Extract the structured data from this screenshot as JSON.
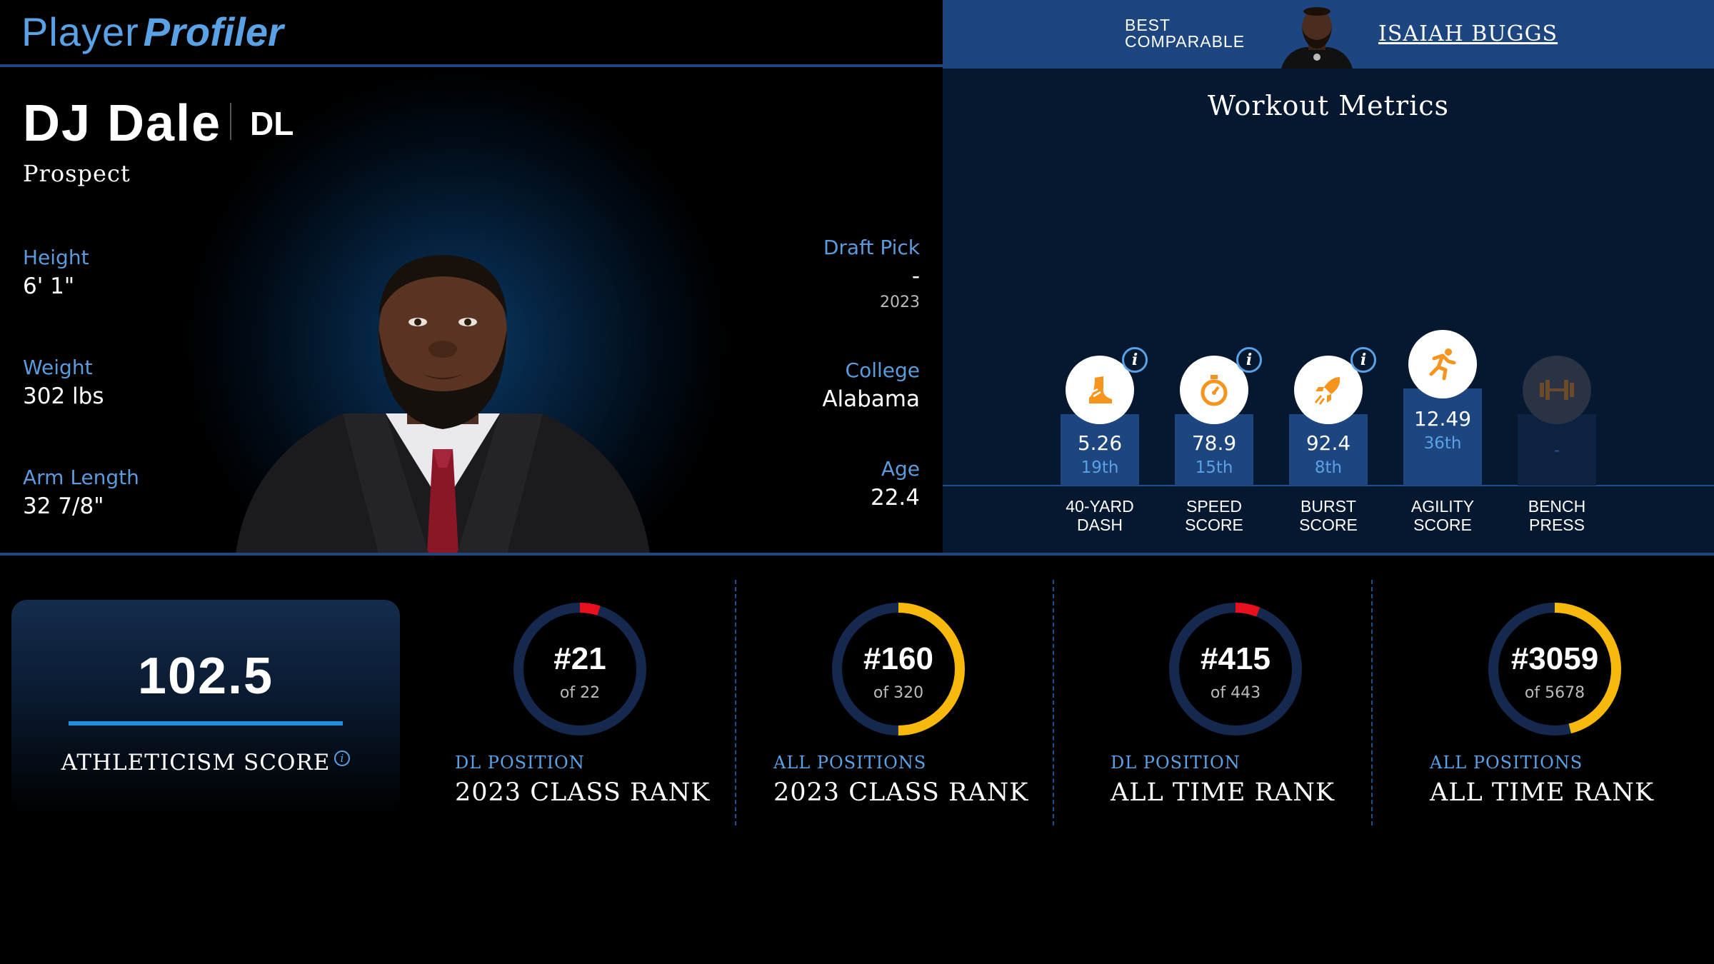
{
  "brand": {
    "part1": "Player",
    "part2": "Profiler"
  },
  "comparable": {
    "label_line1": "BEST",
    "label_line2": "COMPARABLE",
    "name": "ISAIAH BUGGS"
  },
  "player": {
    "name": "DJ Dale",
    "position": "DL",
    "status": "Prospect",
    "height_label": "Height",
    "height": "6' 1\"",
    "weight_label": "Weight",
    "weight": "302 lbs",
    "arm_label": "Arm Length",
    "arm": "32 7/8\"",
    "draft_label": "Draft Pick",
    "draft": "-",
    "draft_year": "2023",
    "college_label": "College",
    "college": "Alabama",
    "age_label": "Age",
    "age": "22.4"
  },
  "workout": {
    "title": "Workout Metrics",
    "metrics": [
      {
        "value": "5.26",
        "pct": "19th",
        "cap1": "40-YARD",
        "cap2": "DASH",
        "icon": "shoe-icon",
        "info": "i"
      },
      {
        "value": "78.9",
        "pct": "15th",
        "cap1": "SPEED",
        "cap2": "SCORE",
        "icon": "stopwatch-icon",
        "info": "i"
      },
      {
        "value": "92.4",
        "pct": "8th",
        "cap1": "BURST",
        "cap2": "SCORE",
        "icon": "rocket-icon",
        "info": "i"
      },
      {
        "value": "12.49",
        "pct": "36th",
        "cap1": "AGILITY",
        "cap2": "SCORE",
        "icon": "runner-icon"
      },
      {
        "value": "",
        "pct": "-",
        "cap1": "BENCH",
        "cap2": "PRESS",
        "icon": "barbell-icon"
      }
    ]
  },
  "athleticism": {
    "score": "102.5",
    "label": "ATHLETICISM SCORE",
    "info": "i"
  },
  "ranks": [
    {
      "rank": "#21",
      "of": "of 22",
      "sub": "DL POSITION",
      "title": "2023 CLASS RANK",
      "fraction": 0.05,
      "color": "#e8101c"
    },
    {
      "rank": "#160",
      "of": "of 320",
      "sub": "ALL POSITIONS",
      "title": "2023 CLASS RANK",
      "fraction": 0.5,
      "color": "#f8b90c"
    },
    {
      "rank": "#415",
      "of": "of 443",
      "sub": "DL POSITION",
      "title": "ALL TIME RANK",
      "fraction": 0.06,
      "color": "#e8101c"
    },
    {
      "rank": "#3059",
      "of": "of 5678",
      "sub": "ALL POSITIONS",
      "title": "ALL TIME RANK",
      "fraction": 0.46,
      "color": "#f8b90c"
    }
  ],
  "colors": {
    "accent": "#5aa2e6",
    "bar": "#1d4580",
    "ring_track": "#14294d",
    "icon_orange": "#f7941d"
  }
}
